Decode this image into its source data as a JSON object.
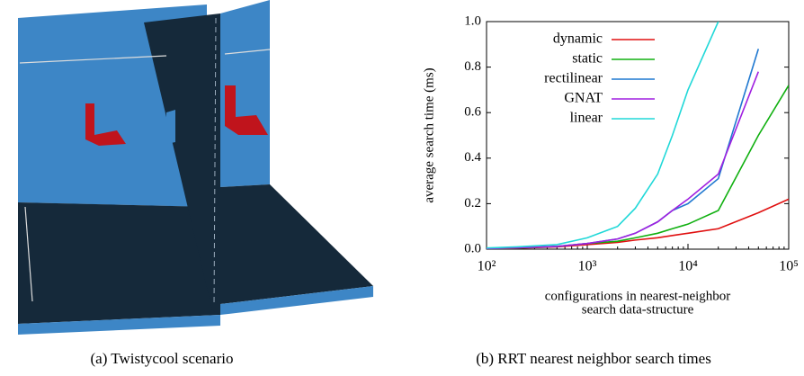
{
  "chart_data": {
    "type": "line",
    "ylabel": "average search time (ms)",
    "xlabel": [
      "configurations in nearest-neighbor",
      "search data-structure"
    ],
    "x": [
      100,
      200,
      500,
      1000,
      2000,
      3000,
      5000,
      7000,
      10000,
      20000,
      50000,
      100000
    ],
    "xscale": "log",
    "xlim": [
      100,
      100000
    ],
    "xticks": [
      {
        "value": 100,
        "label": "10²"
      },
      {
        "value": 1000,
        "label": "10³"
      },
      {
        "value": 10000,
        "label": "10⁴"
      },
      {
        "value": 100000,
        "label": "10⁵"
      }
    ],
    "ylim": [
      0,
      1
    ],
    "yticks": [
      {
        "value": 0,
        "label": "0.0"
      },
      0.2,
      0.4,
      0.6,
      0.8,
      {
        "value": 1,
        "label": "1.0"
      }
    ],
    "legend": "upper left",
    "series": [
      {
        "name": "dynamic",
        "color": "#e01010",
        "values": [
          0.002,
          0.004,
          0.01,
          0.02,
          0.03,
          0.04,
          0.05,
          0.06,
          0.07,
          0.09,
          0.16,
          0.22
        ]
      },
      {
        "name": "static",
        "color": "#10b010",
        "values": [
          0.002,
          0.005,
          0.012,
          0.025,
          0.035,
          0.05,
          0.07,
          0.09,
          0.11,
          0.17,
          0.5,
          0.72
        ]
      },
      {
        "name": "rectilinear",
        "color": "#1f78d0",
        "values": [
          0.003,
          0.006,
          0.012,
          0.025,
          0.045,
          0.07,
          0.12,
          0.17,
          0.2,
          0.31,
          0.88,
          null
        ]
      },
      {
        "name": "GNAT",
        "color": "#a020e0",
        "values": [
          0.003,
          0.006,
          0.012,
          0.025,
          0.045,
          0.07,
          0.12,
          0.17,
          0.22,
          0.33,
          0.78,
          null
        ]
      },
      {
        "name": "linear",
        "color": "#20d8d8",
        "values": [
          0.005,
          0.01,
          0.02,
          0.05,
          0.1,
          0.18,
          0.33,
          0.5,
          0.7,
          1.0,
          null,
          null
        ]
      }
    ]
  },
  "captions": [
    "(a) Twistycool scenario",
    "(b) RRT nearest neighbor search times"
  ]
}
